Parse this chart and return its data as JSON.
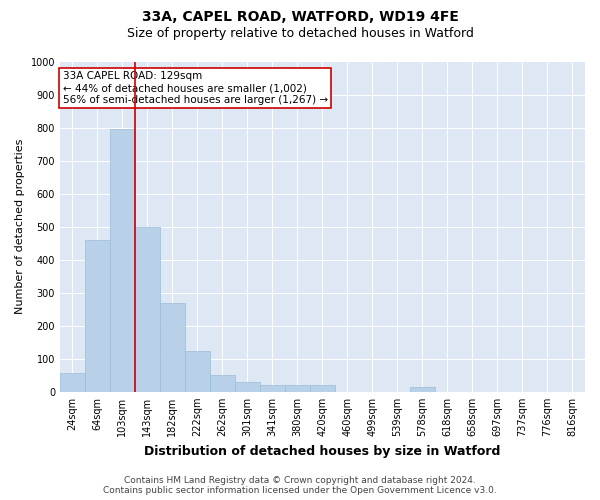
{
  "title_line1": "33A, CAPEL ROAD, WATFORD, WD19 4FE",
  "title_line2": "Size of property relative to detached houses in Watford",
  "xlabel": "Distribution of detached houses by size in Watford",
  "ylabel": "Number of detached properties",
  "categories": [
    "24sqm",
    "64sqm",
    "103sqm",
    "143sqm",
    "182sqm",
    "222sqm",
    "262sqm",
    "301sqm",
    "341sqm",
    "380sqm",
    "420sqm",
    "460sqm",
    "499sqm",
    "539sqm",
    "578sqm",
    "618sqm",
    "658sqm",
    "697sqm",
    "737sqm",
    "776sqm",
    "816sqm"
  ],
  "values": [
    57,
    460,
    795,
    500,
    270,
    125,
    50,
    30,
    20,
    20,
    20,
    0,
    0,
    0,
    15,
    0,
    0,
    0,
    0,
    0,
    0
  ],
  "bar_color": "#b8d0e8",
  "bar_edge_color": "#9bbdd8",
  "vline_color": "#cc0000",
  "vline_x_index": 2,
  "annotation_text": "33A CAPEL ROAD: 129sqm\n← 44% of detached houses are smaller (1,002)\n56% of semi-detached houses are larger (1,267) →",
  "annotation_box_facecolor": "#ffffff",
  "annotation_box_edgecolor": "#cc0000",
  "ylim": [
    0,
    1000
  ],
  "yticks": [
    0,
    100,
    200,
    300,
    400,
    500,
    600,
    700,
    800,
    900,
    1000
  ],
  "fig_facecolor": "#ffffff",
  "ax_facecolor": "#dde8f4",
  "grid_color": "#ffffff",
  "title_fontsize": 10,
  "subtitle_fontsize": 9,
  "ylabel_fontsize": 8,
  "xlabel_fontsize": 9,
  "tick_fontsize": 7,
  "annotation_fontsize": 7.5,
  "footer_fontsize": 6.5,
  "footer_line1": "Contains HM Land Registry data © Crown copyright and database right 2024.",
  "footer_line2": "Contains public sector information licensed under the Open Government Licence v3.0."
}
